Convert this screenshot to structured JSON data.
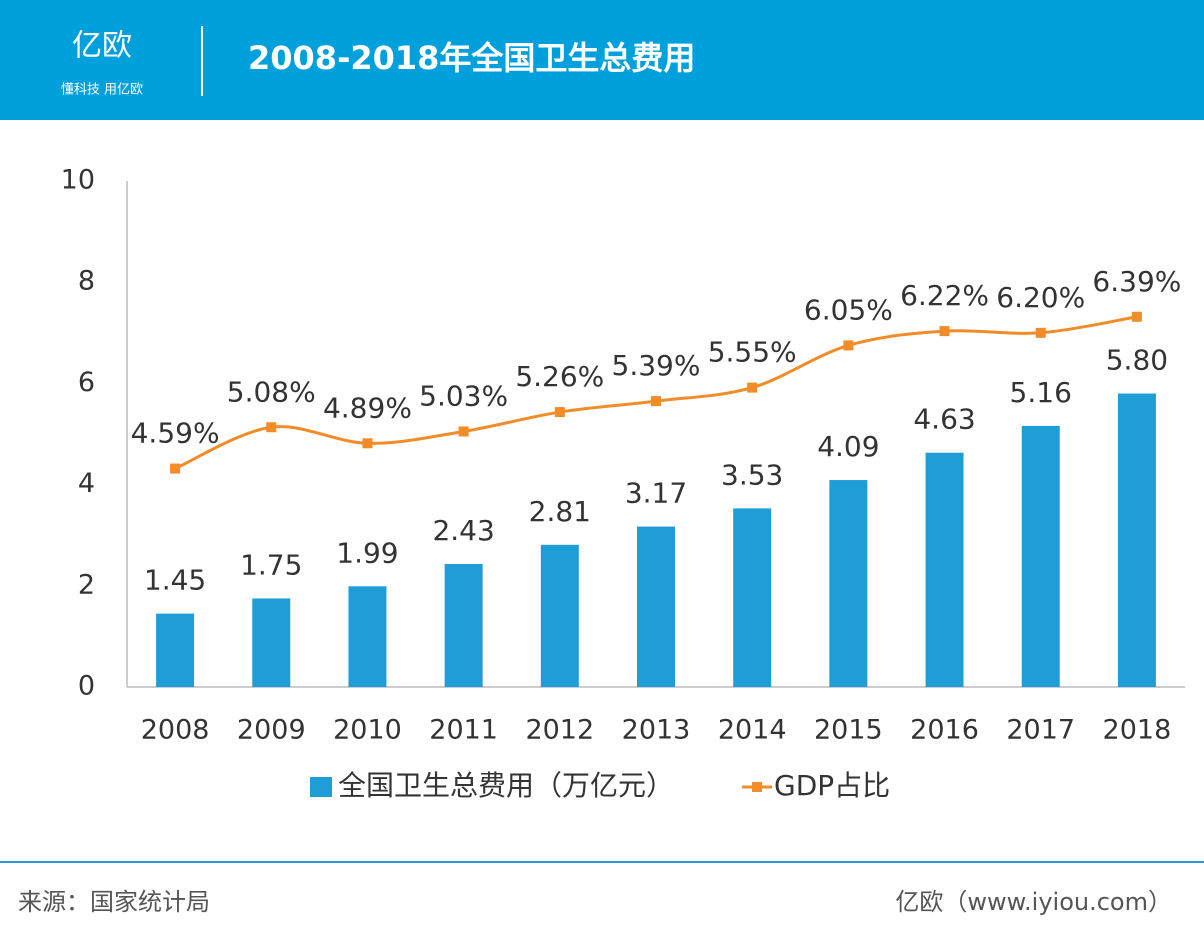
{
  "header": {
    "logo": "亿欧",
    "slogan": "懂科技 用亿欧"
  },
  "chart_data": {
    "type": "bar-line",
    "title": "2008-2018年全国卫生总费用",
    "categories": [
      "2008",
      "2009",
      "2010",
      "2011",
      "2012",
      "2013",
      "2014",
      "2015",
      "2016",
      "2017",
      "2018"
    ],
    "series": [
      {
        "name": "全国卫生总费用（万亿元）",
        "type": "bar",
        "color": "#1f9dd6",
        "values": [
          1.45,
          1.75,
          1.99,
          2.43,
          2.81,
          3.17,
          3.53,
          4.09,
          4.63,
          5.16,
          5.8
        ],
        "value_labels": [
          "1.45",
          "1.75",
          "1.99",
          "2.43",
          "2.81",
          "3.17",
          "3.53",
          "4.09",
          "4.63",
          "5.16",
          "5.80"
        ]
      },
      {
        "name": "GDP占比",
        "type": "line",
        "axis": "y2",
        "color": "#f28c28",
        "values": [
          4.59,
          5.08,
          4.89,
          5.03,
          5.26,
          5.39,
          5.55,
          6.05,
          6.22,
          6.2,
          6.39
        ],
        "value_labels": [
          "4.59%",
          "5.08%",
          "4.89%",
          "5.03%",
          "5.26%",
          "5.39%",
          "5.55%",
          "6.05%",
          "6.22%",
          "6.20%",
          "6.39%"
        ]
      }
    ],
    "ylim": [
      0,
      10
    ],
    "yticks": [
      0,
      2,
      4,
      6,
      8,
      10
    ],
    "y2lim": [
      2,
      8
    ],
    "grid": false,
    "legend": "bottom"
  },
  "footer": {
    "source": "来源：国家统计局",
    "site": "亿欧（www.iyiou.com）"
  }
}
